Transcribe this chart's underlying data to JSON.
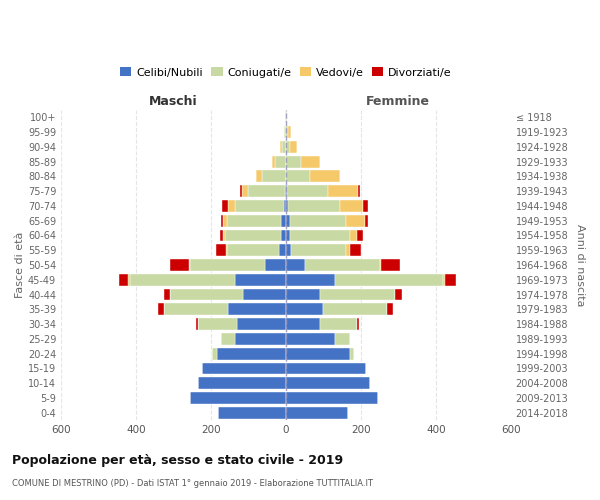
{
  "age_groups": [
    "0-4",
    "5-9",
    "10-14",
    "15-19",
    "20-24",
    "25-29",
    "30-34",
    "35-39",
    "40-44",
    "45-49",
    "50-54",
    "55-59",
    "60-64",
    "65-69",
    "70-74",
    "75-79",
    "80-84",
    "85-89",
    "90-94",
    "95-99",
    "100+"
  ],
  "birth_years": [
    "2014-2018",
    "2009-2013",
    "2004-2008",
    "1999-2003",
    "1994-1998",
    "1989-1993",
    "1984-1988",
    "1979-1983",
    "1974-1978",
    "1969-1973",
    "1964-1968",
    "1959-1963",
    "1954-1958",
    "1949-1953",
    "1944-1948",
    "1939-1943",
    "1934-1938",
    "1929-1933",
    "1924-1928",
    "1919-1923",
    "≤ 1918"
  ],
  "male": {
    "celibe": [
      180,
      255,
      235,
      225,
      185,
      135,
      130,
      155,
      115,
      135,
      55,
      18,
      12,
      12,
      5,
      2,
      0,
      0,
      0,
      0,
      0
    ],
    "coniugato": [
      0,
      0,
      0,
      0,
      12,
      38,
      105,
      170,
      195,
      280,
      200,
      140,
      150,
      145,
      130,
      100,
      65,
      28,
      10,
      4,
      2
    ],
    "vedovo": [
      0,
      0,
      0,
      0,
      0,
      0,
      0,
      0,
      0,
      5,
      3,
      3,
      5,
      10,
      20,
      15,
      15,
      10,
      5,
      2,
      0
    ],
    "divorziato": [
      0,
      0,
      0,
      0,
      0,
      0,
      5,
      15,
      15,
      25,
      50,
      25,
      10,
      5,
      15,
      5,
      0,
      0,
      0,
      0,
      0
    ]
  },
  "female": {
    "nubile": [
      165,
      245,
      225,
      215,
      170,
      130,
      90,
      100,
      90,
      130,
      50,
      15,
      10,
      10,
      5,
      2,
      0,
      0,
      0,
      0,
      0
    ],
    "coniugata": [
      0,
      0,
      0,
      0,
      12,
      42,
      100,
      170,
      200,
      290,
      200,
      145,
      160,
      150,
      140,
      110,
      65,
      40,
      10,
      5,
      2
    ],
    "vedova": [
      0,
      0,
      0,
      0,
      0,
      0,
      0,
      0,
      0,
      5,
      5,
      10,
      20,
      50,
      60,
      80,
      80,
      50,
      20,
      8,
      2
    ],
    "divorziata": [
      0,
      0,
      0,
      0,
      0,
      0,
      5,
      15,
      20,
      30,
      50,
      30,
      15,
      10,
      15,
      5,
      0,
      0,
      0,
      0,
      0
    ]
  },
  "colors": {
    "celibe": "#4472c4",
    "coniugato": "#c8d9a4",
    "vedovo": "#f5c96a",
    "divorziato": "#cc0000"
  },
  "xlim": 600,
  "title": "Popolazione per età, sesso e stato civile - 2019",
  "subtitle": "COMUNE DI MESTRINO (PD) - Dati ISTAT 1° gennaio 2019 - Elaborazione TUTTITALIA.IT",
  "legend_labels": [
    "Celibi/Nubili",
    "Coniugati/e",
    "Vedovi/e",
    "Divorziati/e"
  ],
  "ylabel_left": "Fasce di età",
  "ylabel_right": "Anni di nascita",
  "xlabel_left": "Maschi",
  "xlabel_right": "Femmine"
}
